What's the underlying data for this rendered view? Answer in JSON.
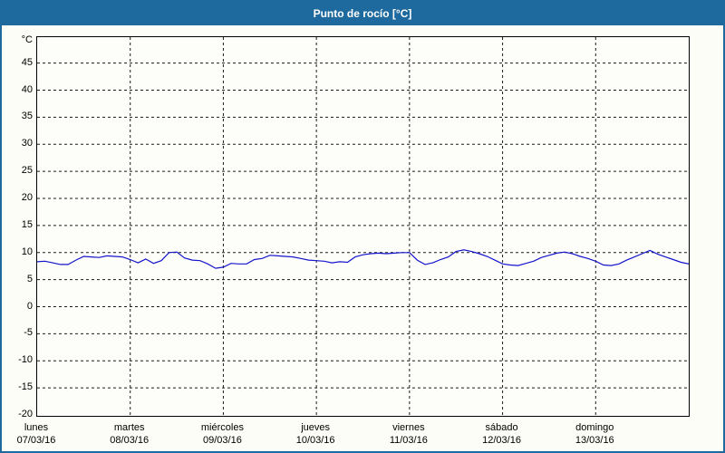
{
  "window": {
    "title": "Punto de rocío [°C]"
  },
  "colors": {
    "titlebar": "#1e6a9e",
    "frame_border": "#1e6a9e",
    "background": "#fcfdf6",
    "plot_background": "#fdfefa",
    "plot_border": "#000000",
    "gridline": "#1a1a1a",
    "line": "#1414cc",
    "title_text": "#ffffff",
    "axis_text": "#000000"
  },
  "chart_data": {
    "type": "line",
    "title": "Punto de rocío [°C]",
    "ylabel": "°C",
    "unit": "°C",
    "grid": "dashed",
    "legend": "none",
    "ylim": [
      -20,
      49.8
    ],
    "y_ticks": [
      45,
      40,
      35,
      30,
      25,
      20,
      15,
      10,
      5,
      0,
      -5,
      -10,
      -15,
      -20
    ],
    "x_days": [
      {
        "name": "lunes",
        "date": "07/03/16"
      },
      {
        "name": "martes",
        "date": "08/03/16"
      },
      {
        "name": "miércoles",
        "date": "09/03/16"
      },
      {
        "name": "jueves",
        "date": "10/03/16"
      },
      {
        "name": "viernes",
        "date": "11/03/16"
      },
      {
        "name": "sábado",
        "date": "12/03/16"
      },
      {
        "name": "domingo",
        "date": "13/03/16"
      }
    ],
    "x_total_hours": 168,
    "x_start_hour": 0,
    "x_step_hours": 2,
    "values": [
      8.3,
      8.4,
      8.1,
      7.8,
      7.8,
      8.6,
      9.3,
      9.2,
      9.1,
      9.4,
      9.3,
      9.2,
      8.7,
      8.1,
      8.8,
      8.0,
      8.5,
      10.0,
      10.1,
      9.0,
      8.6,
      8.5,
      7.9,
      7.1,
      7.3,
      8.0,
      7.9,
      7.9,
      8.7,
      8.9,
      9.5,
      9.4,
      9.3,
      9.2,
      8.9,
      8.6,
      8.5,
      8.4,
      8.1,
      8.3,
      8.2,
      9.2,
      9.6,
      9.8,
      9.9,
      9.8,
      9.9,
      10.0,
      10.0,
      8.6,
      7.8,
      8.1,
      8.7,
      9.2,
      10.2,
      10.5,
      10.2,
      9.8,
      9.3,
      8.6,
      7.9,
      7.7,
      7.6,
      8.0,
      8.4,
      9.1,
      9.5,
      9.9,
      10.1,
      9.8,
      9.3,
      8.9,
      8.4,
      7.7,
      7.6,
      7.9,
      8.6,
      9.2,
      9.8,
      10.4,
      9.7,
      9.2,
      8.7,
      8.2,
      7.9
    ]
  }
}
